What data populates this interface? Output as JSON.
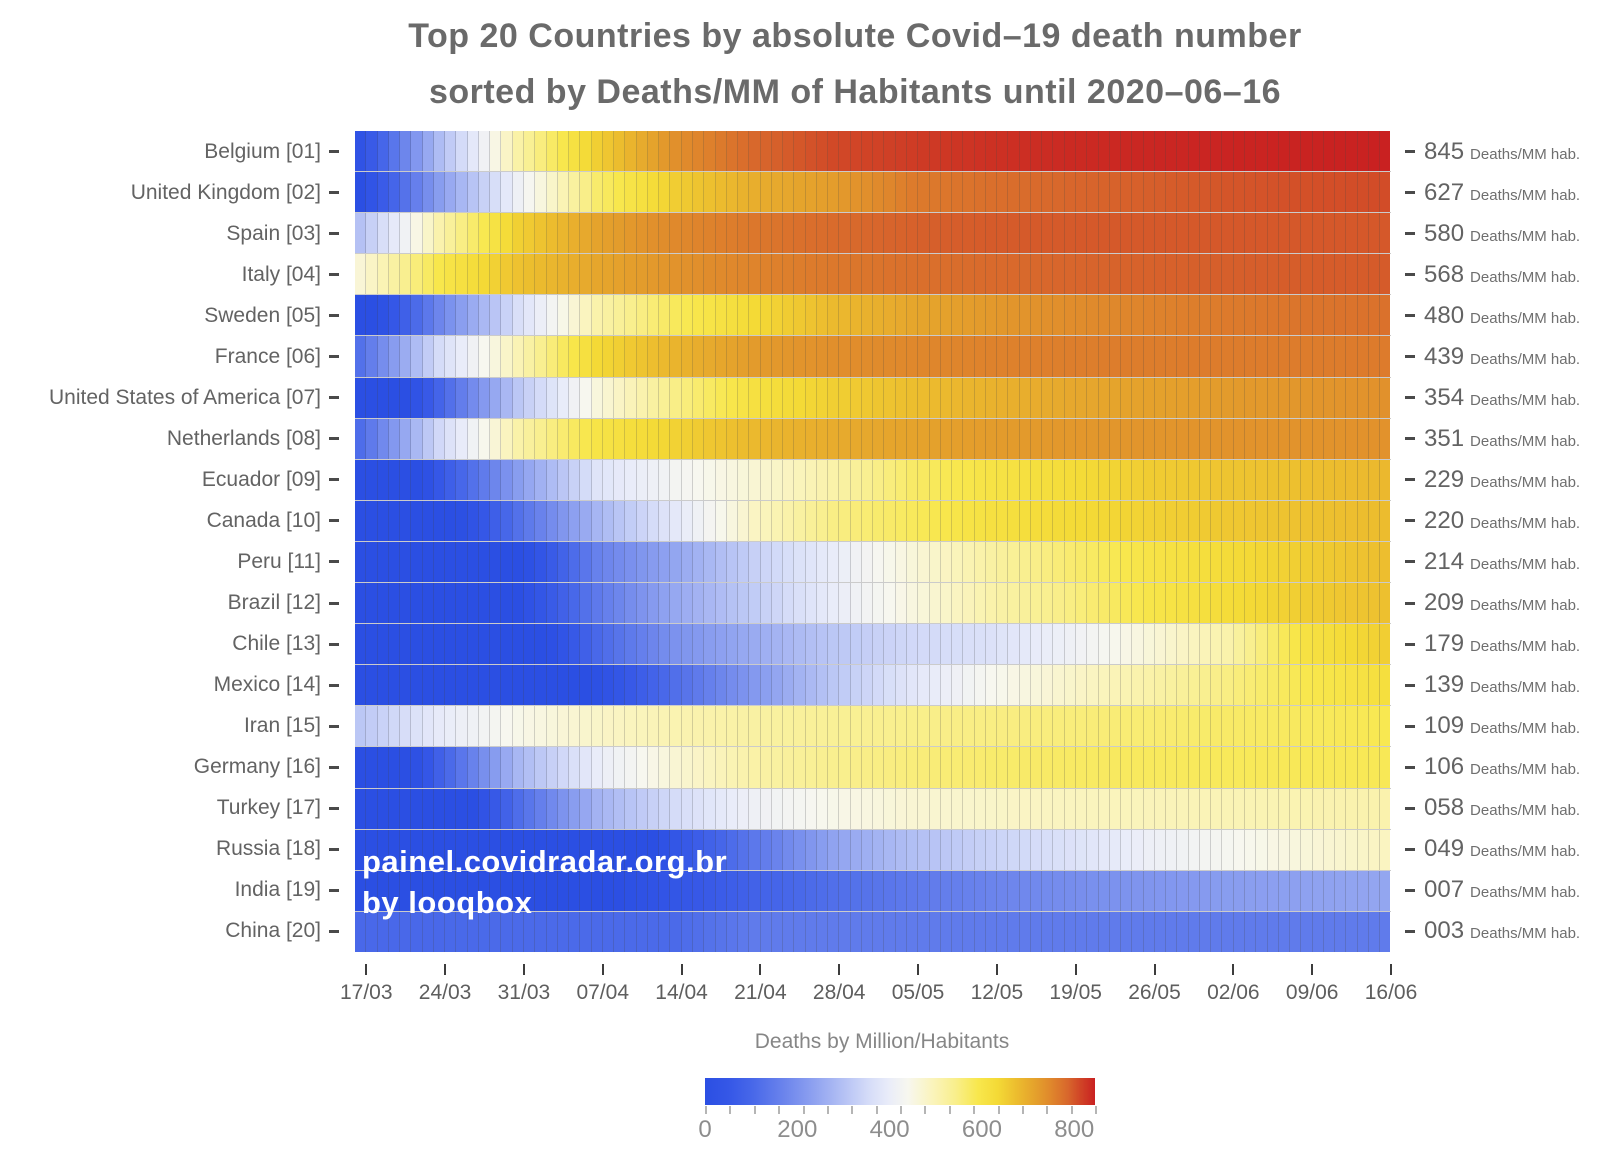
{
  "title": {
    "line1": "Top 20 Countries by absolute Covid–19 death number",
    "line2": "sorted by Deaths/MM of Habitants until 2020–06–16"
  },
  "watermark": {
    "line1": "painel.covidradar.org.br",
    "line2": "by looqbox"
  },
  "unit_label": "Deaths/MM hab.",
  "legend": {
    "title": "Deaths by Million/Habitants",
    "tick_labels": [
      "0",
      "200",
      "400",
      "600",
      "800"
    ],
    "tick_values": [
      0,
      200,
      400,
      600,
      800
    ],
    "minor_tick_count": 16,
    "value_domain": [
      0,
      845
    ]
  },
  "chart_data": {
    "type": "heatmap",
    "title": "Top 20 Countries by absolute Covid–19 death number sorted by Deaths/MM of Habitants until 2020–06–16",
    "x_axis": "date (daily columns from 17/03 to 16/06)",
    "x_tick_labels": [
      "17/03",
      "24/03",
      "31/03",
      "07/04",
      "14/04",
      "21/04",
      "28/04",
      "05/05",
      "12/05",
      "19/05",
      "26/05",
      "02/06",
      "09/06",
      "16/06"
    ],
    "n_day_columns": 92,
    "value_unit": "Deaths/MM hab.",
    "color_scale": {
      "comment": "cumulative deaths per million habitants; blue=low, white~mid, yellow, orange, red=high; cell shading follows log mapping f=log10(max(v,1))/log10(845)",
      "value_domain": [
        0,
        845
      ],
      "stops": [
        [
          0.0,
          "#2b4fe3"
        ],
        [
          0.06,
          "#3557e7"
        ],
        [
          0.12,
          "#4767e9"
        ],
        [
          0.2,
          "#6a83ec"
        ],
        [
          0.28,
          "#8fa2f0"
        ],
        [
          0.35,
          "#b2bff4"
        ],
        [
          0.42,
          "#d5dcf8"
        ],
        [
          0.47,
          "#e9ecf9"
        ],
        [
          0.52,
          "#f7f7ef"
        ],
        [
          0.58,
          "#faf4bf"
        ],
        [
          0.64,
          "#f9ef8e"
        ],
        [
          0.7,
          "#f8e74d"
        ],
        [
          0.75,
          "#f4da36"
        ],
        [
          0.8,
          "#ecbc2e"
        ],
        [
          0.85,
          "#e49f2c"
        ],
        [
          0.89,
          "#df852c"
        ],
        [
          0.93,
          "#d8672c"
        ],
        [
          0.96,
          "#d14727"
        ],
        [
          1.0,
          "#c92121"
        ]
      ]
    },
    "rows": [
      {
        "country": "Belgium",
        "rank": "01",
        "label": "Belgium [01]",
        "final_display": "845",
        "final": 845,
        "weekly": [
          1.2,
          10,
          61,
          177,
          361,
          521,
          637,
          697,
          757,
          792,
          811,
          826,
          834,
          845
        ]
      },
      {
        "country": "United Kingdom",
        "rank": "02",
        "label": "United Kingdom [02]",
        "final_display": "627",
        "final": 627,
        "weekly": [
          1,
          6,
          27,
          92,
          181,
          259,
          315,
          440,
          489,
          529,
          554,
          589,
          611,
          627
        ]
      },
      {
        "country": "Spain",
        "rank": "03",
        "label": "Spain [03]",
        "final_display": "580",
        "final": 580,
        "weekly": [
          11,
          58,
          175,
          295,
          386,
          455,
          509,
          548,
          569,
          574,
          577,
          578,
          579,
          580
        ]
      },
      {
        "country": "Italy",
        "rank": "04",
        "label": "Italy [04]",
        "final_display": "568",
        "final": 568,
        "weekly": [
          41,
          113,
          206,
          283,
          348,
          408,
          453,
          485,
          511,
          532,
          545,
          555,
          563,
          568
        ]
      },
      {
        "country": "Sweden",
        "rank": "05",
        "label": "Sweden [05]",
        "final_display": "480",
        "final": 480,
        "weekly": [
          0.7,
          4,
          18,
          59,
          102,
          156,
          225,
          283,
          328,
          371,
          409,
          443,
          467,
          480
        ]
      },
      {
        "country": "France",
        "rank": "06",
        "label": "France [06]",
        "final_display": "439",
        "final": 439,
        "weekly": [
          2.7,
          17,
          54,
          158,
          241,
          319,
          363,
          391,
          413,
          429,
          434,
          436,
          438,
          439
        ]
      },
      {
        "country": "United States of America",
        "rank": "07",
        "label": "United States of America [07]",
        "final_display": "354",
        "final": 354,
        "weekly": [
          0.3,
          2.1,
          12,
          39,
          78,
          134,
          177,
          215,
          247,
          276,
          299,
          321,
          338,
          354
        ]
      },
      {
        "country": "Netherlands",
        "rank": "08",
        "label": "Netherlands [08]",
        "final_display": "351",
        "final": 351,
        "weekly": [
          2.5,
          16,
          60,
          122,
          171,
          228,
          265,
          295,
          317,
          332,
          341,
          347,
          349,
          351
        ]
      },
      {
        "country": "Ecuador",
        "rank": "09",
        "label": "Ecuador [09]",
        "final_display": "229",
        "final": 229,
        "weekly": [
          0.2,
          1.5,
          6,
          20,
          30,
          42,
          60,
          95,
          125,
          150,
          183,
          200,
          212,
          229
        ]
      },
      {
        "country": "Canada",
        "rank": "10",
        "label": "Canada [10]",
        "final_display": "220",
        "final": 220,
        "weekly": [
          0.2,
          0.7,
          2.7,
          9,
          22,
          48,
          79,
          102,
          133,
          154,
          173,
          193,
          206,
          220
        ]
      },
      {
        "country": "Peru",
        "rank": "11",
        "label": "Peru [11]",
        "final_display": "214",
        "final": 214,
        "weekly": [
          0.1,
          0.3,
          0.9,
          3.7,
          7,
          14,
          24,
          40,
          63,
          90,
          123,
          151,
          182,
          214
        ]
      },
      {
        "country": "Brazil",
        "rank": "12",
        "label": "Brazil [12]",
        "final_display": "209",
        "final": 209,
        "weekly": [
          0.005,
          0.2,
          1,
          3.2,
          7.3,
          13,
          24,
          38,
          59,
          80,
          117,
          149,
          183,
          209
        ]
      },
      {
        "country": "Chile",
        "rank": "13",
        "label": "Chile [13]",
        "final_display": "179",
        "final": 179,
        "weekly": [
          0.05,
          0.1,
          0.6,
          2.3,
          5,
          7.7,
          12,
          16,
          19,
          27,
          40,
          59,
          130,
          179
        ]
      },
      {
        "country": "Mexico",
        "rank": "14",
        "label": "Mexico [14]",
        "final_display": "139",
        "final": 139,
        "weekly": [
          0.01,
          0.05,
          0.2,
          1.1,
          2.6,
          5.6,
          12,
          21,
          33,
          45,
          60,
          80,
          111,
          139
        ]
      },
      {
        "country": "Iran",
        "rank": "15",
        "label": "Iran [15]",
        "final_display": "109",
        "final": 109,
        "weekly": [
          12,
          23,
          35,
          46,
          56,
          63,
          70,
          76,
          80,
          84,
          89,
          95,
          101,
          109
        ]
      },
      {
        "country": "Germany",
        "rank": "16",
        "label": "Germany [16]",
        "final_display": "106",
        "final": 106,
        "weekly": [
          0.3,
          1.9,
          9.3,
          24,
          42,
          61,
          74,
          84,
          92,
          97,
          101,
          103,
          105,
          106
        ]
      },
      {
        "country": "Turkey",
        "rank": "17",
        "label": "Turkey [17]",
        "final_display": "058",
        "final": 58,
        "weekly": [
          0.1,
          0.5,
          2.5,
          8.6,
          17,
          27,
          35,
          42,
          46,
          50,
          52,
          54,
          56,
          58
        ]
      },
      {
        "country": "Russia",
        "rank": "18",
        "label": "Russia [18]",
        "final_display": "049",
        "final": 49,
        "weekly": [
          0.01,
          0.02,
          0.1,
          0.4,
          1.4,
          3.1,
          6.7,
          10.5,
          14.5,
          19,
          26,
          32,
          40,
          49
        ]
      },
      {
        "country": "India",
        "rank": "19",
        "label": "India [19]",
        "final_display": "007",
        "final": 7,
        "weekly": [
          0.05,
          0.15,
          0.4,
          0.9,
          1.4,
          2.0,
          2.6,
          3.2,
          3.9,
          4.6,
          5.3,
          6.0,
          6.5,
          7
        ]
      },
      {
        "country": "China",
        "rank": "20",
        "label": "China [20]",
        "final_display": "003",
        "final": 3,
        "weekly": [
          2.3,
          2.3,
          2.4,
          2.4,
          2.4,
          3.3,
          3.3,
          3.3,
          3.3,
          3.3,
          3.3,
          3.3,
          3.3,
          3.3
        ]
      }
    ]
  }
}
